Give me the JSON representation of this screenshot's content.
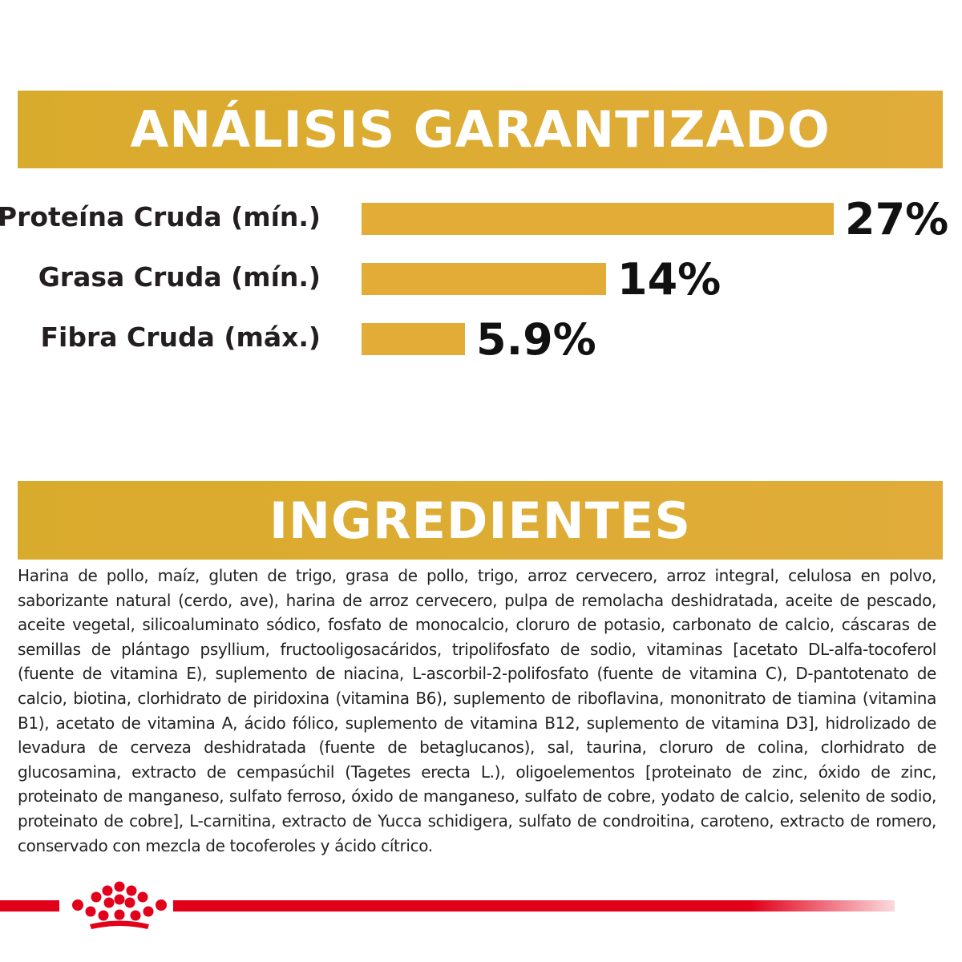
{
  "headers": {
    "analysis": "ANÁLISIS GARANTIZADO",
    "ingredients": "INGREDIENTES"
  },
  "chart_data": {
    "type": "bar",
    "orientation": "horizontal",
    "categories": [
      "Proteína Cruda (mín.)",
      "Grasa Cruda (mín.)",
      "Fibra Cruda (máx.)"
    ],
    "values": [
      27,
      14,
      5.9
    ],
    "value_labels": [
      "27%",
      "14%",
      "5.9%"
    ],
    "title": "ANÁLISIS GARANTIZADO",
    "xlabel": "",
    "ylabel": "",
    "xlim": [
      0,
      27
    ],
    "grid": false,
    "bar_color": "#e2ac37"
  },
  "ingredients_text": "Harina de pollo, maíz, gluten de trigo, grasa de pollo, trigo, arroz cervecero, arroz integral, celulosa en polvo, saborizante natural (cerdo, ave), harina de arroz cervecero, pulpa de remolacha deshidratada, aceite de pescado, aceite vegetal, silicoaluminato sódico, fosfato de monocalcio, cloruro de potasio, carbonato de calcio, cáscaras de semillas de plántago psyllium, fructooligosacáridos, tripolifosfato de sodio, vitaminas [acetato DL-alfa-tocoferol (fuente de vitamina E), suplemento de niacina, L-ascorbil-2-polifosfato (fuente de vitamina C), D-pantotenato de calcio, biotina, clorhidrato de piridoxina (vitamina B6), suplemento de riboflavina, mononitrato de tiamina (vitamina B1), acetato de vitamina A, ácido fólico, suplemento de vitamina B12, suplemento de vitamina D3], hidrolizado de levadura de cerveza deshidratada (fuente de betaglucanos), sal, taurina, cloruro de colina, clorhidrato de glucosamina, extracto de cempasúchil (Tagetes erecta L.), oligoelementos [proteinato de zinc, óxido de zinc, proteinato de manganeso, sulfato ferroso, óxido de manganeso, sulfato de cobre, yodato de calcio, selenito de sodio, proteinato de cobre], L-carnitina, extracto de Yucca schidigera, sulfato de condroitina, caroteno, extracto de romero, conservado con mezcla de tocoferoles y ácido cítrico.",
  "colors": {
    "accent": "#e2ac37",
    "brand_red": "#e2001a",
    "text": "#231f20"
  },
  "logo": {
    "icon": "crown-icon"
  }
}
